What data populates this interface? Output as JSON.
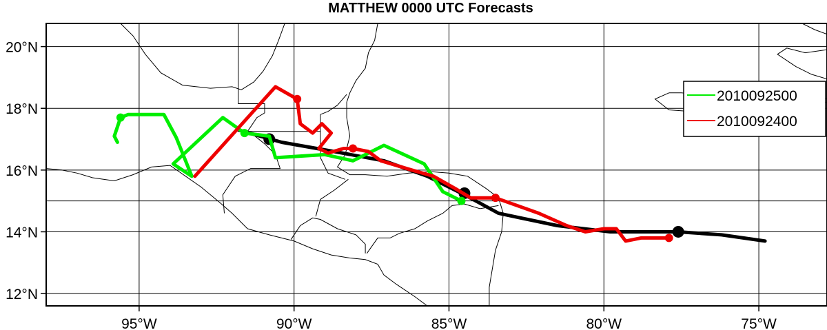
{
  "title": "MATTHEW 0000 UTC Forecasts",
  "map": {
    "lon_range": [
      -98,
      -72.8
    ],
    "lat_range": [
      11.6,
      20.75
    ],
    "grid_lons": [
      -95,
      -90,
      -85,
      -80,
      -75
    ],
    "grid_lats": [
      12,
      14,
      15,
      16,
      18,
      20
    ],
    "x_tick_labels": [
      {
        "lon": -95,
        "label": "95°W"
      },
      {
        "lon": -90,
        "label": "90°W"
      },
      {
        "lon": -85,
        "label": "85°W"
      },
      {
        "lon": -80,
        "label": "80°W"
      },
      {
        "lon": -75,
        "label": "75°W"
      }
    ],
    "y_tick_labels": [
      {
        "lat": 12,
        "label": "12°N"
      },
      {
        "lat": 14,
        "label": "14°N"
      },
      {
        "lat": 16,
        "label": "16°N"
      },
      {
        "lat": 18,
        "label": "18°N"
      },
      {
        "lat": 20,
        "label": "20°N"
      }
    ],
    "coastlines": [
      [
        [
          -98,
          16.05
        ],
        [
          -97.5,
          16
        ],
        [
          -97,
          15.9
        ],
        [
          -96.5,
          15.75
        ],
        [
          -95.8,
          15.65
        ],
        [
          -95.2,
          15.85
        ],
        [
          -94.6,
          16.1
        ],
        [
          -94,
          16.15
        ],
        [
          -93.5,
          15.8
        ],
        [
          -93,
          15.45
        ],
        [
          -92.4,
          14.95
        ],
        [
          -92,
          14.6
        ],
        [
          -91.5,
          14.1
        ],
        [
          -90.8,
          13.9
        ],
        [
          -90,
          13.7
        ],
        [
          -89.4,
          13.45
        ],
        [
          -88.8,
          13.25
        ],
        [
          -88.2,
          13.15
        ],
        [
          -87.7,
          13.1
        ],
        [
          -87.3,
          12.95
        ],
        [
          -87.1,
          12.6
        ],
        [
          -86.7,
          12.3
        ],
        [
          -86.1,
          11.9
        ],
        [
          -85.7,
          11.6
        ]
      ],
      [
        [
          -95.6,
          20.75
        ],
        [
          -95.2,
          20.35
        ],
        [
          -94.8,
          19.75
        ],
        [
          -94.3,
          19.15
        ],
        [
          -93.6,
          18.75
        ],
        [
          -92.7,
          18.65
        ],
        [
          -92,
          18.7
        ],
        [
          -91.7,
          18.6
        ],
        [
          -91.3,
          18.85
        ],
        [
          -91,
          19.2
        ],
        [
          -90.7,
          19.7
        ],
        [
          -90.5,
          20.2
        ],
        [
          -90.3,
          20.75
        ]
      ],
      [
        [
          -87.3,
          20.75
        ],
        [
          -87.4,
          20.2
        ],
        [
          -87.6,
          19.8
        ],
        [
          -87.7,
          19.3
        ],
        [
          -88,
          18.9
        ],
        [
          -88.2,
          18.5
        ],
        [
          -88.3,
          18.2
        ],
        [
          -88.3,
          17.7
        ],
        [
          -88.2,
          17.1
        ],
        [
          -88.35,
          16.5
        ],
        [
          -88.6,
          16.1
        ],
        [
          -88.2,
          15.85
        ],
        [
          -87.7,
          15.85
        ],
        [
          -87,
          15.8
        ],
        [
          -86.3,
          15.9
        ],
        [
          -85.6,
          15.95
        ],
        [
          -85,
          15.9
        ],
        [
          -84.4,
          15.8
        ],
        [
          -83.8,
          15.4
        ],
        [
          -83.4,
          15.1
        ],
        [
          -83.25,
          14.6
        ],
        [
          -83.3,
          14
        ],
        [
          -83.5,
          13.4
        ],
        [
          -83.6,
          12.8
        ],
        [
          -83.7,
          12.2
        ],
        [
          -83.7,
          11.6
        ]
      ],
      [
        [
          -91.8,
          20.75
        ],
        [
          -91.8,
          18.15
        ],
        [
          -90.95,
          18.15
        ],
        [
          -90.95,
          17.85
        ],
        [
          -91.2,
          17.7
        ],
        [
          -91.5,
          17.25
        ],
        [
          -90.9,
          17.25
        ],
        [
          -90.3,
          17.25
        ],
        [
          -89.15,
          17.25
        ],
        [
          -89.15,
          17.8
        ]
      ],
      [
        [
          -89.15,
          17.8
        ],
        [
          -88.9,
          17.9
        ],
        [
          -88.6,
          18.1
        ],
        [
          -88.3,
          18.45
        ]
      ],
      [
        [
          -89.15,
          17.25
        ],
        [
          -89.15,
          16.4
        ],
        [
          -88.9,
          15.9
        ],
        [
          -88.35,
          15.7
        ]
      ],
      [
        [
          -92.25,
          14.6
        ],
        [
          -92.3,
          15.2
        ],
        [
          -91.9,
          15.8
        ],
        [
          -91.4,
          16.05
        ],
        [
          -90.45,
          16.05
        ],
        [
          -90.6,
          16.5
        ],
        [
          -90.95,
          16.85
        ],
        [
          -91.45,
          17.25
        ]
      ],
      [
        [
          -90.1,
          13.75
        ],
        [
          -89.8,
          14.2
        ],
        [
          -89.4,
          14.45
        ],
        [
          -89.15,
          14.4
        ],
        [
          -88.6,
          14.1
        ],
        [
          -88,
          13.9
        ],
        [
          -87.7,
          13.6
        ],
        [
          -87.7,
          13.3
        ]
      ],
      [
        [
          -89.15,
          15.05
        ],
        [
          -88.7,
          15.35
        ],
        [
          -88.25,
          15.7
        ]
      ],
      [
        [
          -89.15,
          15.05
        ],
        [
          -89.3,
          14.5
        ]
      ],
      [
        [
          -87.65,
          13.3
        ],
        [
          -87.3,
          13.8
        ],
        [
          -86.9,
          13.8
        ],
        [
          -86.6,
          13.95
        ],
        [
          -86.1,
          14.1
        ],
        [
          -85.7,
          14.35
        ],
        [
          -85.2,
          14.6
        ],
        [
          -84.9,
          14.85
        ],
        [
          -84.5,
          14.9
        ],
        [
          -84,
          14.75
        ],
        [
          -83.4,
          14.85
        ]
      ],
      [
        [
          -85.75,
          11.6
        ],
        [
          -84.7,
          11.2
        ]
      ],
      [
        [
          -77.9,
          18.5
        ],
        [
          -77.5,
          18.5
        ],
        [
          -76.9,
          18.45
        ],
        [
          -76.5,
          18.2
        ],
        [
          -76.7,
          17.95
        ],
        [
          -77.2,
          17.9
        ],
        [
          -77.9,
          17.95
        ],
        [
          -78.35,
          18.3
        ],
        [
          -77.9,
          18.5
        ]
      ],
      [
        [
          -72.8,
          19.9
        ],
        [
          -73.5,
          19.8
        ],
        [
          -74.1,
          19.95
        ],
        [
          -74.4,
          19.75
        ],
        [
          -73.8,
          19.35
        ],
        [
          -73.3,
          19.1
        ],
        [
          -72.8,
          18.95
        ]
      ],
      [
        [
          -72.8,
          18.3
        ],
        [
          -73.4,
          18.45
        ],
        [
          -74,
          18.55
        ],
        [
          -74.5,
          18.45
        ],
        [
          -74.2,
          18.2
        ],
        [
          -73.6,
          18.15
        ],
        [
          -72.8,
          18.2
        ]
      ],
      [
        [
          -72.8,
          20.4
        ],
        [
          -73.2,
          20.55
        ],
        [
          -73.6,
          20.75
        ]
      ]
    ],
    "line_colors": {
      "best_track": "#000000",
      "forecast_a": "#00ee00",
      "forecast_b": "#ee0000"
    }
  },
  "tracks": [
    {
      "id": "best-track",
      "color": "#000000",
      "points": [
        [
          -74.8,
          13.7
        ],
        [
          -76.2,
          13.9
        ],
        [
          -77.6,
          14
        ],
        [
          -79.8,
          14
        ],
        [
          -81.5,
          14.2
        ],
        [
          -83.4,
          14.6
        ],
        [
          -84.5,
          15.2
        ],
        [
          -85.7,
          15.8
        ],
        [
          -87.1,
          16.3
        ],
        [
          -88.7,
          16.6
        ],
        [
          -90.4,
          16.9
        ],
        [
          -91.8,
          17.3
        ]
      ],
      "markers": [
        [
          -77.6,
          14
        ],
        [
          -84.5,
          15.25
        ],
        [
          -90.8,
          17
        ]
      ]
    },
    {
      "id": "forecast-2010092500",
      "color": "#00ee00",
      "points": [
        [
          -95.7,
          16.9
        ],
        [
          -95.8,
          17.1
        ],
        [
          -95.6,
          17.7
        ],
        [
          -95.35,
          17.8
        ],
        [
          -94.5,
          17.8
        ],
        [
          -94.2,
          17.8
        ],
        [
          -93.8,
          17.05
        ],
        [
          -93.3,
          15.8
        ],
        [
          -93.9,
          16.2
        ],
        [
          -92.3,
          17.7
        ],
        [
          -91.6,
          17.2
        ],
        [
          -90.8,
          17.1
        ],
        [
          -90.6,
          16.4
        ],
        [
          -89,
          16.5
        ],
        [
          -88.1,
          16.3
        ],
        [
          -87.5,
          16.6
        ],
        [
          -87.1,
          16.8
        ],
        [
          -85.8,
          16.2
        ],
        [
          -85.2,
          15.3
        ],
        [
          -84.6,
          15
        ]
      ],
      "markers": [
        [
          -95.6,
          17.7
        ],
        [
          -91.6,
          17.2
        ],
        [
          -84.6,
          15
        ]
      ]
    },
    {
      "id": "forecast-2010092400",
      "color": "#ee0000",
      "points": [
        [
          -77.9,
          13.8
        ],
        [
          -78.8,
          13.8
        ],
        [
          -79.3,
          13.7
        ],
        [
          -79.6,
          14.1
        ],
        [
          -80,
          14.1
        ],
        [
          -80.6,
          14
        ],
        [
          -81.2,
          14.2
        ],
        [
          -82.1,
          14.6
        ],
        [
          -83.5,
          15.1
        ],
        [
          -84.3,
          15.1
        ],
        [
          -84.8,
          15.4
        ],
        [
          -85.5,
          15.8
        ],
        [
          -86.2,
          16
        ],
        [
          -87.2,
          16.3
        ],
        [
          -87.6,
          16.6
        ],
        [
          -88.1,
          16.7
        ],
        [
          -88.4,
          16.7
        ],
        [
          -88.9,
          16.55
        ],
        [
          -89.2,
          16.7
        ],
        [
          -88.8,
          17.2
        ],
        [
          -89.1,
          17.5
        ],
        [
          -89.4,
          17.2
        ],
        [
          -89.8,
          17.5
        ],
        [
          -89.9,
          18.3
        ],
        [
          -90.6,
          18.7
        ],
        [
          -93.2,
          15.8
        ]
      ],
      "markers": [
        [
          -77.9,
          13.8
        ],
        [
          -83.5,
          15.1
        ],
        [
          -88.1,
          16.7
        ],
        [
          -89.9,
          18.3
        ]
      ]
    }
  ],
  "legend": {
    "items": [
      {
        "label": "2010092500",
        "color": "#00ee00"
      },
      {
        "label": "2010092400",
        "color": "#ee0000"
      }
    ]
  }
}
